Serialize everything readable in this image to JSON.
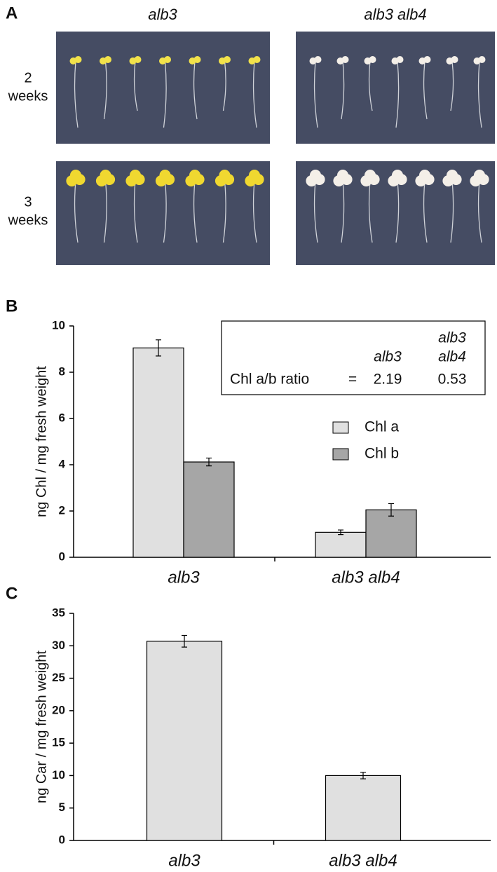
{
  "panel_labels": [
    "A",
    "B",
    "C"
  ],
  "panel_a": {
    "columns": [
      "alb3",
      "alb3 alb4"
    ],
    "rows": [
      [
        "2",
        "weeks"
      ],
      [
        "3",
        "weeks"
      ]
    ]
  },
  "chart_data": [
    {
      "type": "bar",
      "y_label": "ng Chl / mg fresh weight",
      "categories": [
        "alb3",
        "alb3 alb4"
      ],
      "series": [
        {
          "name": "Chl a",
          "color": "#e0e0e0",
          "values": [
            9.05,
            1.08
          ],
          "errors": [
            0.35,
            0.1
          ]
        },
        {
          "name": "Chl b",
          "color": "#a6a6a6",
          "values": [
            4.12,
            2.05
          ],
          "errors": [
            0.17,
            0.27
          ]
        }
      ],
      "ylim": [
        0,
        10
      ],
      "yticks": [
        0,
        2,
        4,
        6,
        8,
        10
      ],
      "inset": {
        "columns": [
          [
            "alb3"
          ],
          [
            "alb3",
            "alb4"
          ]
        ],
        "row_label": "Chl a/b ratio",
        "separator": "=",
        "values": [
          2.19,
          0.53
        ]
      }
    },
    {
      "type": "bar",
      "y_label": "ng Car / mg fresh weight",
      "categories": [
        "alb3",
        "alb3 alb4"
      ],
      "series": [
        {
          "color": "#e0e0e0",
          "values": [
            30.7,
            10.0
          ],
          "errors": [
            0.9,
            0.5
          ]
        }
      ],
      "ylim": [
        0,
        35
      ],
      "yticks": [
        0,
        5,
        10,
        15,
        20,
        25,
        30,
        35
      ]
    }
  ]
}
